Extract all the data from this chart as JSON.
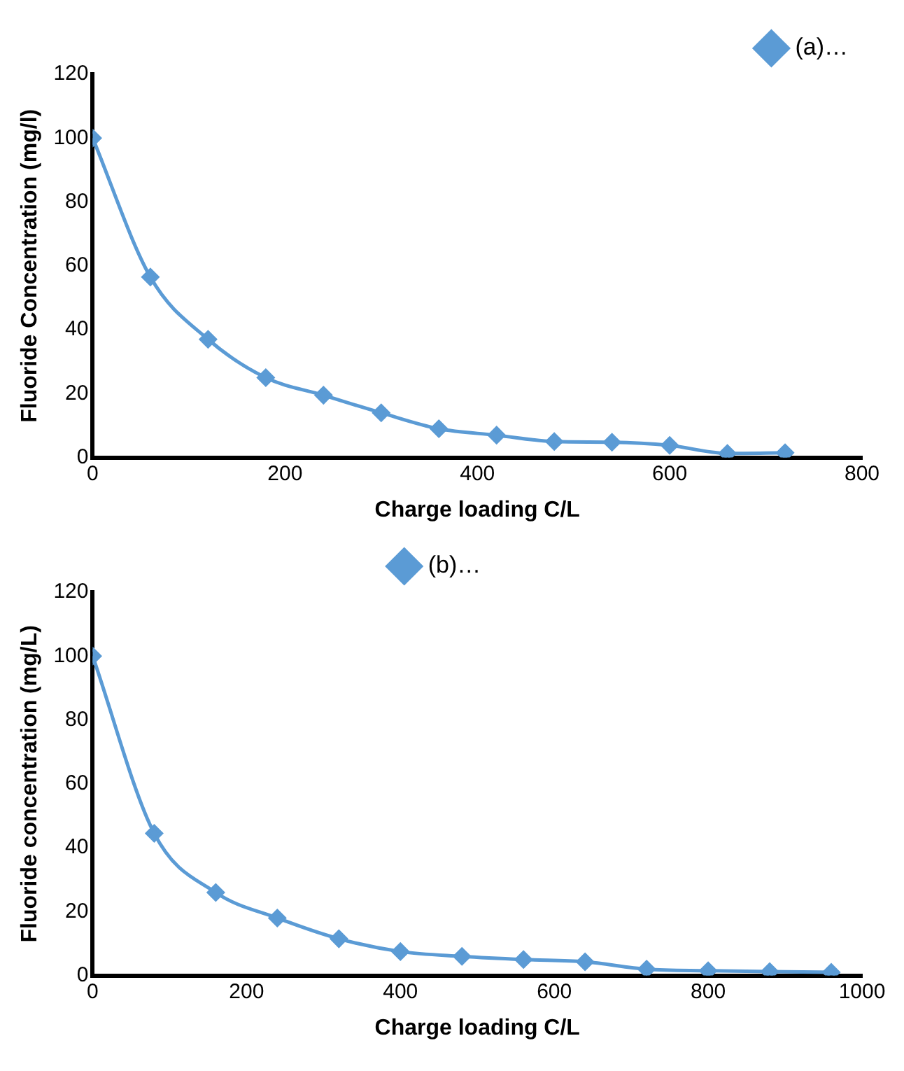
{
  "chart_data": [
    {
      "type": "line",
      "xlabel": "Charge loading C/L",
      "ylabel": "Fluoride Concentration (mg/l)",
      "x": [
        0,
        60,
        120,
        180,
        240,
        300,
        360,
        420,
        480,
        540,
        600,
        660,
        720
      ],
      "series": [
        {
          "name": "(a)…",
          "color": "#5b9bd5",
          "values": [
            100,
            56.5,
            37,
            25,
            19.5,
            14,
            9,
            7,
            5,
            4.8,
            3.8,
            1.3,
            1.5
          ]
        }
      ],
      "xlim": [
        0,
        800
      ],
      "xticks": [
        0,
        200,
        400,
        600,
        800
      ],
      "ylim": [
        0,
        120
      ],
      "yticks": [
        0,
        20,
        40,
        60,
        80,
        100,
        120
      ],
      "grid": false,
      "legend": "top right",
      "marker": "diamond",
      "line_style": "solid"
    },
    {
      "type": "line",
      "xlabel": "Charge loading C/L",
      "ylabel": "Fluoride concentration (mg/L)",
      "x": [
        0,
        80,
        160,
        240,
        320,
        400,
        480,
        560,
        640,
        720,
        800,
        880,
        960
      ],
      "series": [
        {
          "name": "(b)…",
          "color": "#5b9bd5",
          "values": [
            100,
            44.5,
            26,
            18,
            11.5,
            7.5,
            6,
            5,
            4.3,
            2,
            1.5,
            1.2,
            1
          ]
        }
      ],
      "xlim": [
        0,
        1000
      ],
      "xticks": [
        0,
        200,
        400,
        600,
        800,
        1000
      ],
      "ylim": [
        0,
        120
      ],
      "yticks": [
        0,
        20,
        40,
        60,
        80,
        100,
        120
      ],
      "grid": false,
      "legend": "top",
      "marker": "diamond",
      "line_style": "solid"
    }
  ]
}
